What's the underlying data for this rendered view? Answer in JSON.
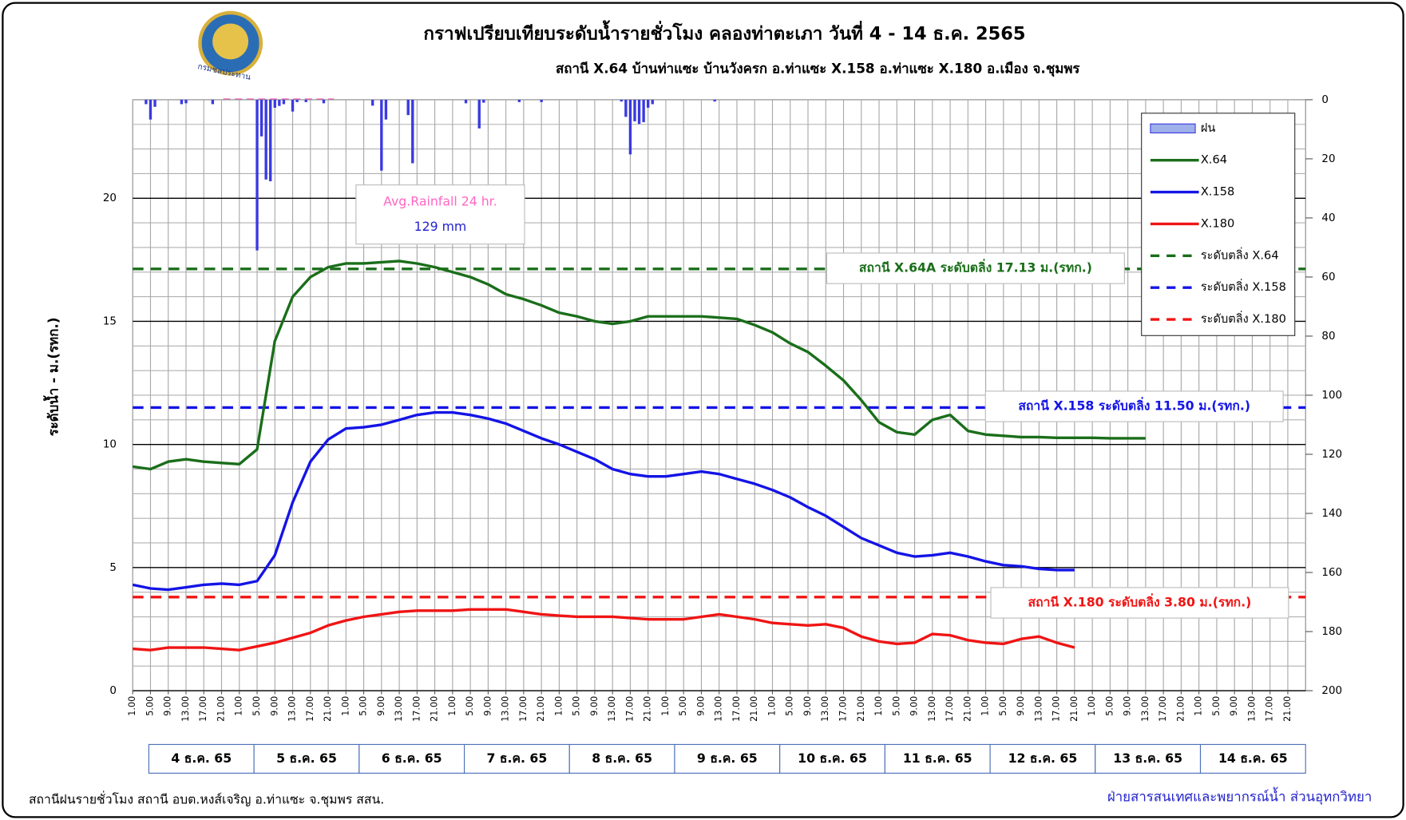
{
  "logo_text": "กรมชลประทาน",
  "footer_left": "สถานีฝนรายชั่วโมง สถานี อบต.หงส์เจริญ อ.ท่าแซะ จ.ชุมพร สสน.",
  "footer_right": "ฝ่ายสารสนเทศและพยากรณ์น้ำ ส่วนอุทกวิทยา",
  "chart_data": {
    "type": "line",
    "title": "กราฟเปรียบเทียบระดับน้ำรายชั่วโมง คลองท่าตะเภา  วันที่ 4 - 14 ธ.ค. 2565",
    "subtitle": "สถานี X.64 บ้านท่าแซะ บ้านวังครก อ.ท่าแซะ X.158 อ.ท่าแซะ X.180 อ.เมือง จ.ชุมพร",
    "ylabel": "ระดับน้ำ  - ม.(รทก.)",
    "xlim": [
      0,
      264
    ],
    "xticks": [
      {
        "value": 0,
        "label": "1.00"
      },
      {
        "value": 4,
        "label": "5.00"
      },
      {
        "value": 8,
        "label": "9.00"
      },
      {
        "value": 12,
        "label": "13.00"
      },
      {
        "value": 16,
        "label": "17.00"
      },
      {
        "value": 20,
        "label": "21.00"
      },
      {
        "value": 24,
        "label": "1.00"
      },
      {
        "value": 28,
        "label": "5.00"
      },
      {
        "value": 32,
        "label": "9.00"
      },
      {
        "value": 36,
        "label": "13.00"
      },
      {
        "value": 40,
        "label": "17.00"
      },
      {
        "value": 44,
        "label": "21.00"
      },
      {
        "value": 48,
        "label": "1.00"
      },
      {
        "value": 52,
        "label": "5.00"
      },
      {
        "value": 56,
        "label": "9.00"
      },
      {
        "value": 60,
        "label": "13.00"
      },
      {
        "value": 64,
        "label": "17.00"
      },
      {
        "value": 68,
        "label": "21.00"
      },
      {
        "value": 72,
        "label": "1.00"
      },
      {
        "value": 76,
        "label": "5.00"
      },
      {
        "value": 80,
        "label": "9.00"
      },
      {
        "value": 84,
        "label": "13.00"
      },
      {
        "value": 88,
        "label": "17.00"
      },
      {
        "value": 92,
        "label": "21.00"
      },
      {
        "value": 96,
        "label": "1.00"
      },
      {
        "value": 100,
        "label": "5.00"
      },
      {
        "value": 104,
        "label": "9.00"
      },
      {
        "value": 108,
        "label": "13.00"
      },
      {
        "value": 112,
        "label": "17.00"
      },
      {
        "value": 116,
        "label": "21.00"
      },
      {
        "value": 120,
        "label": "1.00"
      },
      {
        "value": 124,
        "label": "5.00"
      },
      {
        "value": 128,
        "label": "9.00"
      },
      {
        "value": 132,
        "label": "13.00"
      },
      {
        "value": 136,
        "label": "17.00"
      },
      {
        "value": 140,
        "label": "21.00"
      },
      {
        "value": 144,
        "label": "1.00"
      },
      {
        "value": 148,
        "label": "5.00"
      },
      {
        "value": 152,
        "label": "9.00"
      },
      {
        "value": 156,
        "label": "13.00"
      },
      {
        "value": 160,
        "label": "17.00"
      },
      {
        "value": 164,
        "label": "21.00"
      },
      {
        "value": 168,
        "label": "1.00"
      },
      {
        "value": 172,
        "label": "5.00"
      },
      {
        "value": 176,
        "label": "9.00"
      },
      {
        "value": 180,
        "label": "13.00"
      },
      {
        "value": 184,
        "label": "17.00"
      },
      {
        "value": 188,
        "label": "21.00"
      },
      {
        "value": 192,
        "label": "1.00"
      },
      {
        "value": 196,
        "label": "5.00"
      },
      {
        "value": 200,
        "label": "9.00"
      },
      {
        "value": 204,
        "label": "13.00"
      },
      {
        "value": 208,
        "label": "17.00"
      },
      {
        "value": 212,
        "label": "21.00"
      },
      {
        "value": 216,
        "label": "1.00"
      },
      {
        "value": 220,
        "label": "5.00"
      },
      {
        "value": 224,
        "label": "9.00"
      },
      {
        "value": 228,
        "label": "13.00"
      },
      {
        "value": 232,
        "label": "17.00"
      },
      {
        "value": 236,
        "label": "21.00"
      },
      {
        "value": 240,
        "label": "1.00"
      },
      {
        "value": 244,
        "label": "5.00"
      },
      {
        "value": 248,
        "label": "9.00"
      },
      {
        "value": 252,
        "label": "13.00"
      },
      {
        "value": 256,
        "label": "17.00"
      },
      {
        "value": 260,
        "label": "21.00"
      }
    ],
    "ylim": [
      0,
      24
    ],
    "yticks": [
      0,
      5,
      10,
      15,
      20
    ],
    "minor_yticks": [
      1,
      2,
      3,
      4,
      6,
      7,
      8,
      9,
      11,
      12,
      13,
      14,
      16,
      17,
      18,
      19,
      21,
      22,
      23
    ],
    "y2lim": [
      0,
      200
    ],
    "y2ticks": [
      0,
      20,
      40,
      60,
      80,
      100,
      120,
      140,
      160,
      180,
      200
    ],
    "y2_inverted": true,
    "grid": true,
    "legend": "upper right",
    "day_labels": [
      "4 ธ.ค. 65",
      "5 ธ.ค. 65",
      "6 ธ.ค. 65",
      "7 ธ.ค. 65",
      "8 ธ.ค. 65",
      "9 ธ.ค. 65",
      "10 ธ.ค. 65",
      "11 ธ.ค. 65",
      "12 ธ.ค. 65",
      "13 ธ.ค. 65",
      "14 ธ.ค. 65"
    ],
    "x": [
      0,
      4,
      8,
      12,
      16,
      20,
      24,
      28,
      32,
      36,
      40,
      44,
      48,
      52,
      56,
      60,
      64,
      68,
      72,
      76,
      80,
      84,
      88,
      92,
      96,
      100,
      104,
      108,
      112,
      116,
      120,
      124,
      128,
      132,
      136,
      140,
      144,
      148,
      152,
      156,
      160,
      164,
      168,
      172,
      176,
      180,
      184,
      188,
      192,
      196,
      200,
      204,
      208,
      212,
      216,
      220,
      224,
      228,
      232,
      236,
      240,
      244,
      248,
      252,
      256,
      260
    ],
    "rain": {
      "name": "ฝน",
      "color": "#3a3ae0",
      "axis": "y2",
      "x": [
        3,
        4,
        5,
        11,
        12,
        18,
        28,
        29,
        30,
        31,
        32,
        33,
        34,
        36,
        37,
        39,
        43,
        54,
        56,
        57,
        62,
        63,
        75,
        78,
        79,
        87,
        92,
        110,
        111,
        112,
        113,
        114,
        115,
        116,
        117,
        131
      ],
      "values": [
        1.5,
        6.7,
        2.4,
        1.5,
        1.2,
        1.5,
        51,
        12.4,
        27,
        27.6,
        2.7,
        2.1,
        1.5,
        4,
        0.8,
        0.8,
        1.2,
        2,
        24,
        6.7,
        5.2,
        21.5,
        1.2,
        9.7,
        1,
        0.8,
        0.8,
        0.6,
        5.8,
        18.5,
        7.3,
        8.2,
        7.6,
        2.7,
        1.5,
        0.6
      ]
    },
    "series": [
      {
        "name": "X.64",
        "color": "#1a6e1a",
        "values": [
          9.1,
          9.0,
          9.3,
          9.4,
          9.3,
          9.25,
          9.2,
          9.8,
          14.2,
          16.0,
          16.8,
          17.2,
          17.35,
          17.35,
          17.4,
          17.45,
          17.35,
          17.2,
          17.0,
          16.8,
          16.5,
          16.1,
          15.9,
          15.65,
          15.35,
          15.2,
          15.0,
          14.9,
          15.0,
          15.2,
          15.2,
          15.2,
          15.2,
          15.15,
          15.1,
          14.85,
          14.55,
          14.1,
          13.75,
          13.2,
          12.6,
          11.8,
          10.9,
          10.5,
          10.4,
          11.0,
          11.2,
          10.55,
          10.4,
          10.35,
          10.3,
          10.3,
          10.27,
          10.27,
          10.27,
          10.25,
          10.25,
          10.25,
          null,
          null,
          null,
          null,
          null,
          null,
          null,
          null
        ]
      },
      {
        "name": "X.158",
        "color": "#1414e6",
        "values": [
          4.3,
          4.15,
          4.1,
          4.2,
          4.3,
          4.35,
          4.3,
          4.45,
          5.5,
          7.65,
          9.3,
          10.2,
          10.65,
          10.7,
          10.8,
          11.0,
          11.2,
          11.3,
          11.3,
          11.2,
          11.05,
          10.85,
          10.55,
          10.25,
          10.0,
          9.7,
          9.4,
          9.0,
          8.8,
          8.7,
          8.7,
          8.8,
          8.9,
          8.8,
          8.6,
          8.4,
          8.15,
          7.85,
          7.45,
          7.1,
          6.65,
          6.2,
          5.9,
          5.6,
          5.45,
          5.5,
          5.6,
          5.45,
          5.25,
          5.1,
          5.05,
          4.95,
          4.9,
          4.9,
          null,
          null,
          null,
          null,
          null,
          null,
          null,
          null,
          null,
          null,
          null,
          null
        ]
      },
      {
        "name": "X.180",
        "color": "#f01414",
        "values": [
          1.7,
          1.65,
          1.75,
          1.75,
          1.75,
          1.7,
          1.65,
          1.8,
          1.95,
          2.15,
          2.35,
          2.65,
          2.85,
          3.0,
          3.1,
          3.2,
          3.25,
          3.25,
          3.25,
          3.3,
          3.3,
          3.3,
          3.2,
          3.1,
          3.05,
          3.0,
          3.0,
          3.0,
          2.95,
          2.9,
          2.9,
          2.9,
          3.0,
          3.1,
          3.0,
          2.9,
          2.75,
          2.7,
          2.65,
          2.7,
          2.55,
          2.2,
          2.0,
          1.9,
          1.95,
          2.3,
          2.25,
          2.05,
          1.95,
          1.9,
          2.1,
          2.2,
          1.95,
          1.75,
          null,
          null,
          null,
          null,
          null,
          null,
          null,
          null,
          null,
          null,
          null,
          null
        ]
      }
    ],
    "thresholds": [
      {
        "name": "ระดับตลิ่ง X.64",
        "value": 17.13,
        "color": "#1a6e1a",
        "label": "สถานี X.64A ระดับตลิ่ง 17.13 ม.(รทก.)"
      },
      {
        "name": "ระดับตลิ่ง X.158",
        "value": 11.5,
        "color": "#1414e6",
        "label": "สถานี X.158 ระดับตลิ่ง 11.50 ม.(รทก.)"
      },
      {
        "name": "ระดับตลิ่ง X.180",
        "value": 3.8,
        "color": "#f01414",
        "label": "สถานี X.180 ระดับตลิ่ง 3.80 ม.(รทก.)"
      }
    ],
    "annotations": [
      "Avg.Rainfall 24 hr.",
      "129 mm"
    ]
  }
}
